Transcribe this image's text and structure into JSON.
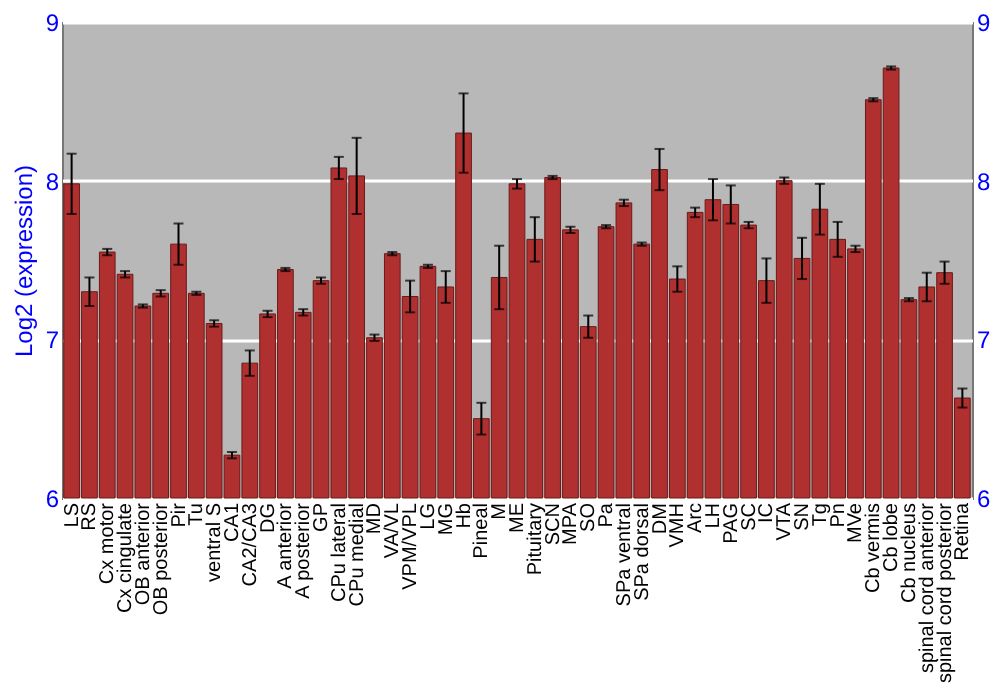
{
  "chart_data": {
    "type": "bar",
    "ylabel": "Log2 (expression)",
    "categories": [
      "LS",
      "RS",
      "Cx motor",
      "Cx cingulate",
      "OB anterior",
      "OB posterior",
      "Pir",
      "Tu",
      "ventral S",
      "CA1",
      "CA2/CA3",
      "DG",
      "A anterior",
      "A posterior",
      "GP",
      "CPu lateral",
      "CPu medial",
      "MD",
      "VA/VL",
      "VPM/VPL",
      "LG",
      "MG",
      "Hb",
      "Pineal",
      "M",
      "ME",
      "Pituitary",
      "SCN",
      "MPA",
      "SO",
      "Pa",
      "SPa ventral",
      "SPa dorsal",
      "DM",
      "VMH",
      "Arc",
      "LH",
      "PAG",
      "SC",
      "IC",
      "VTA",
      "SN",
      "Tg",
      "Pn",
      "MVe",
      "Cb vermis",
      "Cb lobe",
      "Cb nucleus",
      "spinal cord anterior",
      "spinal cord posterior",
      "Retina"
    ],
    "series": [
      {
        "color": "#b03030",
        "values": [
          7.98,
          7.3,
          7.55,
          7.41,
          7.21,
          7.29,
          7.6,
          7.29,
          7.1,
          6.27,
          6.85,
          7.16,
          7.44,
          7.17,
          7.37,
          8.08,
          8.03,
          7.01,
          7.54,
          7.27,
          7.46,
          7.33,
          8.3,
          6.5,
          7.39,
          7.98,
          7.63,
          8.02,
          7.69,
          7.08,
          7.71,
          7.86,
          7.6,
          8.07,
          7.38,
          7.8,
          7.88,
          7.85,
          7.72,
          7.37,
          8.0,
          7.51,
          7.82,
          7.63,
          7.57,
          8.51,
          8.71,
          7.25,
          7.33,
          7.42,
          6.63
        ],
        "errors": [
          0.19,
          0.09,
          0.02,
          0.02,
          0.01,
          0.02,
          0.13,
          0.01,
          0.02,
          0.02,
          0.08,
          0.02,
          0.01,
          0.02,
          0.02,
          0.07,
          0.24,
          0.02,
          0.01,
          0.1,
          0.01,
          0.1,
          0.25,
          0.1,
          0.2,
          0.03,
          0.14,
          0.01,
          0.02,
          0.07,
          0.01,
          0.02,
          0.01,
          0.13,
          0.08,
          0.03,
          0.13,
          0.12,
          0.02,
          0.14,
          0.02,
          0.13,
          0.16,
          0.11,
          0.02,
          0.01,
          0.01,
          0.01,
          0.09,
          0.07,
          0.06
        ]
      }
    ],
    "ylim": [
      6,
      9
    ],
    "yticks": [
      6,
      7,
      8,
      9
    ],
    "y2lim": [
      6,
      9
    ],
    "y2ticks": [
      6,
      7,
      8,
      9
    ],
    "grid": "y"
  }
}
